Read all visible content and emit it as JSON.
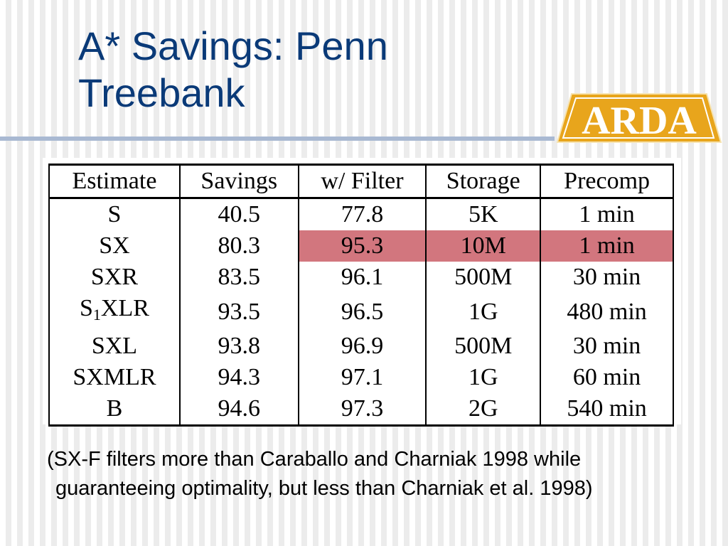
{
  "slide": {
    "title_line1": "A* Savings: Penn",
    "title_line2": "Treebank",
    "logo_text": "ARDA",
    "caption_line1": "(SX-F filters more than Caraballo and Charniak 1998 while",
    "caption_line2": "guaranteeing optimality, but less than Charniak et al. 1998)"
  },
  "table": {
    "headers": [
      "Estimate",
      "Savings",
      "w/ Filter",
      "Storage",
      "Precomp"
    ],
    "rows": [
      {
        "estimate": "S",
        "savings": "40.5",
        "filter": "77.8",
        "storage": "5K",
        "precomp": "1 min"
      },
      {
        "estimate": "SX",
        "savings": "80.3",
        "filter": "95.3",
        "storage": "10M",
        "precomp": "1 min"
      },
      {
        "estimate": "SXR",
        "savings": "83.5",
        "filter": "96.1",
        "storage": "500M",
        "precomp": "30 min"
      },
      {
        "estimate_base": "S",
        "estimate_sub": "1",
        "estimate_rest": "XLR",
        "savings": "93.5",
        "filter": "96.5",
        "storage": "1G",
        "precomp": "480 min"
      },
      {
        "estimate": "SXL",
        "savings": "93.8",
        "filter": "96.9",
        "storage": "500M",
        "precomp": "30 min"
      },
      {
        "estimate": "SXMLR",
        "savings": "94.3",
        "filter": "97.1",
        "storage": "1G",
        "precomp": "60 min"
      },
      {
        "estimate": "B",
        "savings": "94.6",
        "filter": "97.3",
        "storage": "2G",
        "precomp": "540 min"
      }
    ]
  },
  "colors": {
    "title": "#0a3a78",
    "highlight": "#d2767e",
    "logo_gold": "#e8a51c"
  }
}
